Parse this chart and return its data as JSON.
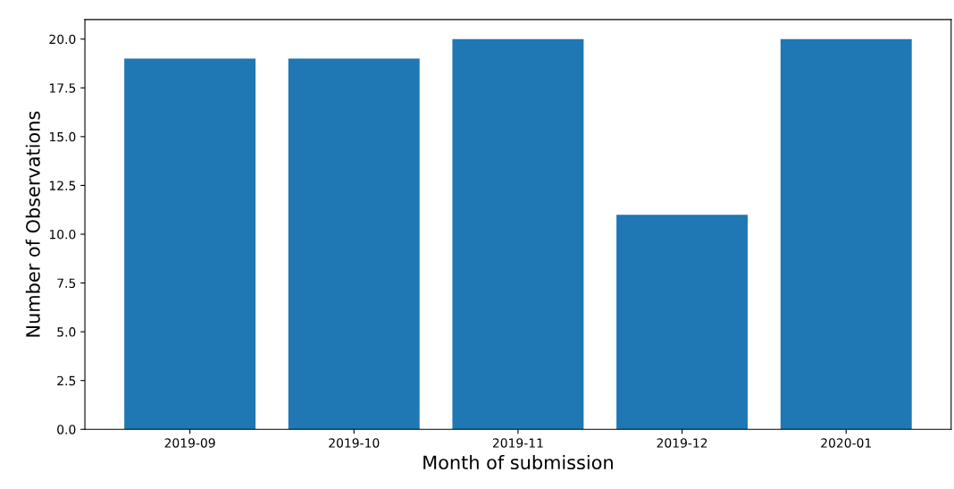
{
  "chart_data": {
    "type": "bar",
    "xlabel": "Month of submission",
    "ylabel": "Number of Observations",
    "categories": [
      "2019-09",
      "2019-10",
      "2019-11",
      "2019-12",
      "2020-01"
    ],
    "values": [
      19,
      19,
      20,
      11,
      20
    ],
    "color": "#1f77b4",
    "ylim": [
      0,
      21
    ],
    "yticks": [
      {
        "value": 0,
        "label": "0.0"
      },
      {
        "value": 2.5,
        "label": "2.5"
      },
      {
        "value": 5,
        "label": "5.0"
      },
      {
        "value": 7.5,
        "label": "7.5"
      },
      {
        "value": 10,
        "label": "10.0"
      },
      {
        "value": 12.5,
        "label": "12.5"
      },
      {
        "value": 15,
        "label": "15.0"
      },
      {
        "value": 17.5,
        "label": "17.5"
      },
      {
        "value": 20,
        "label": "20.0"
      }
    ],
    "grid": false,
    "legend": false
  }
}
